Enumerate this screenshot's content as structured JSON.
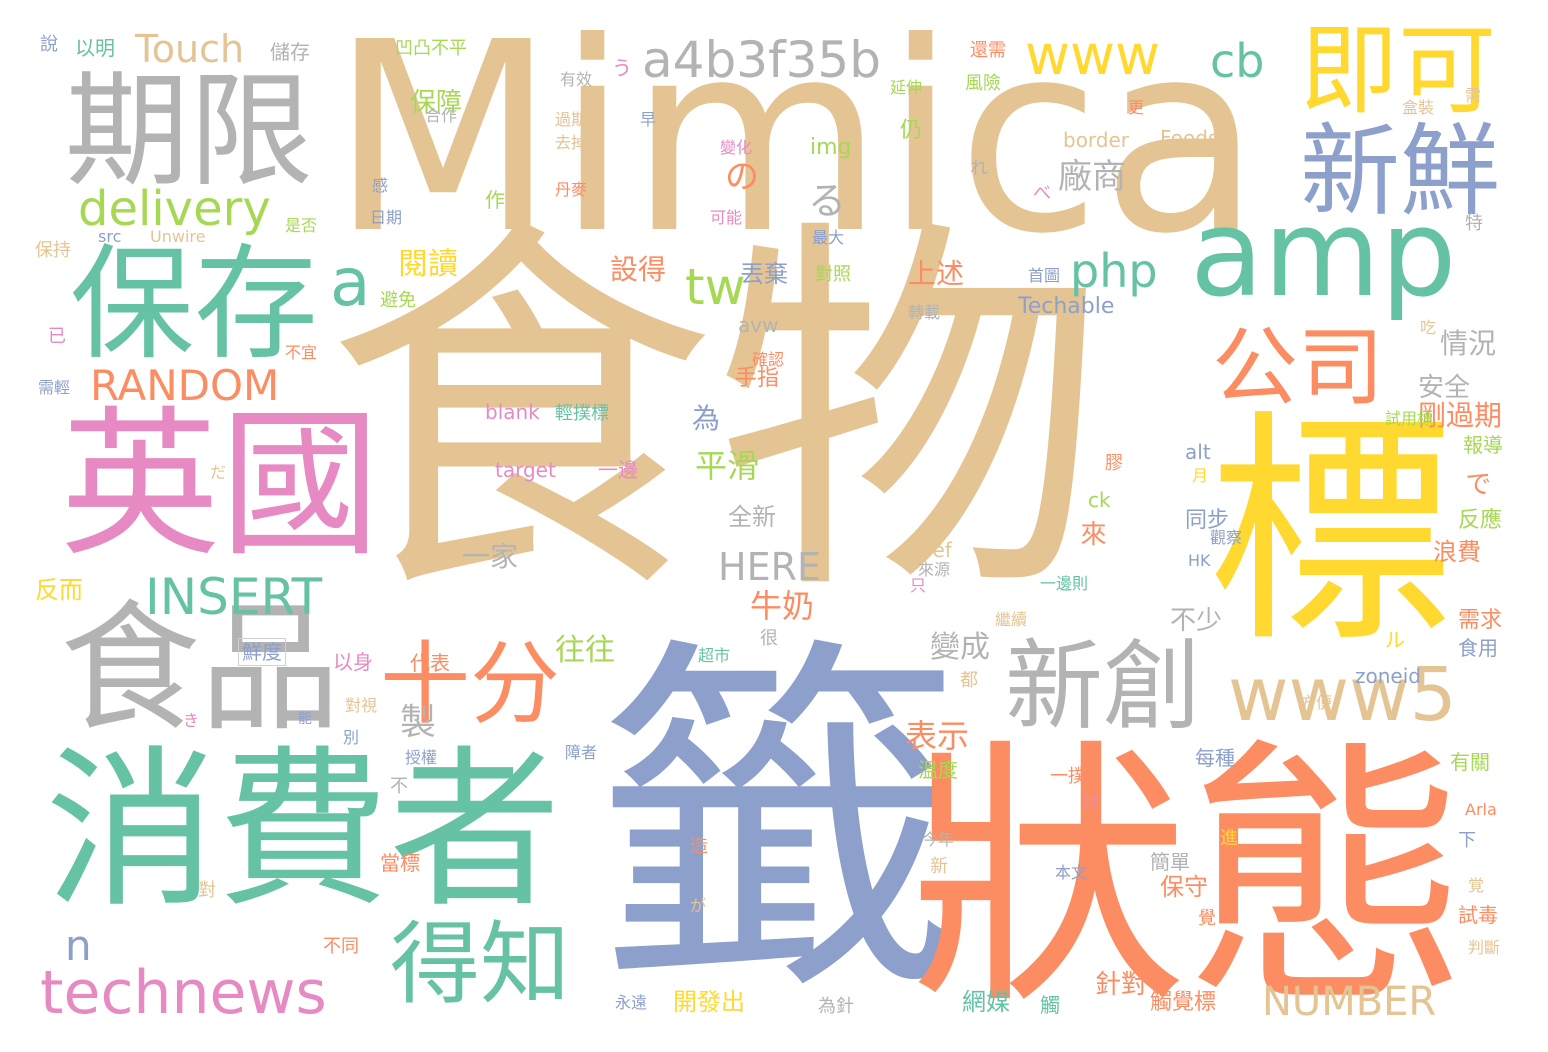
{
  "palette": {
    "tan": "#e5c494",
    "green": "#66c2a5",
    "orange": "#fc8d62",
    "blue": "#8da0cb",
    "pink": "#e78ac3",
    "lime": "#a6d854",
    "yellow": "#ffd92f",
    "gray": "#b3b3b3"
  },
  "words": [
    {
      "text": "食物",
      "color": "tan"
    },
    {
      "text": "Mimica",
      "color": "tan"
    },
    {
      "text": "籤",
      "color": "blue"
    },
    {
      "text": "狀態",
      "color": "orange"
    },
    {
      "text": "標",
      "color": "yellow"
    },
    {
      "text": "消費者",
      "color": "green"
    },
    {
      "text": "英國",
      "color": "pink"
    },
    {
      "text": "食品",
      "color": "gray"
    },
    {
      "text": "期限",
      "color": "gray"
    },
    {
      "text": "保存",
      "color": "green"
    },
    {
      "text": "amp",
      "color": "green"
    },
    {
      "text": "新鮮",
      "color": "blue"
    },
    {
      "text": "即可",
      "color": "yellow"
    },
    {
      "text": "新創",
      "color": "gray"
    },
    {
      "text": "www5",
      "color": "tan"
    },
    {
      "text": "十分",
      "color": "orange"
    },
    {
      "text": "得知",
      "color": "green"
    },
    {
      "text": "technews",
      "color": "pink"
    },
    {
      "text": "公司",
      "color": "orange"
    },
    {
      "text": "a4b3f35b",
      "color": "gray"
    },
    {
      "text": "www",
      "color": "yellow"
    },
    {
      "text": "delivery",
      "color": "lime"
    },
    {
      "text": "RANDOM",
      "color": "orange"
    },
    {
      "text": "INSERT",
      "color": "green"
    },
    {
      "text": "NUMBER",
      "color": "tan"
    },
    {
      "text": "Touch",
      "color": "tan"
    },
    {
      "text": "php",
      "color": "green"
    },
    {
      "text": "tw",
      "color": "lime"
    },
    {
      "text": "a",
      "color": "green"
    },
    {
      "text": "cb",
      "color": "green"
    },
    {
      "text": "n",
      "color": "blue"
    },
    {
      "text": "HERE",
      "color": "gray"
    },
    {
      "text": "製",
      "color": "gray"
    },
    {
      "text": "廠商",
      "color": "gray"
    },
    {
      "text": "る",
      "color": "gray"
    },
    {
      "text": "の",
      "color": "orange"
    },
    {
      "text": "閱讀",
      "color": "yellow"
    },
    {
      "text": "保障",
      "color": "lime"
    },
    {
      "text": "平滑",
      "color": "lime"
    },
    {
      "text": "牛奶",
      "color": "orange"
    },
    {
      "text": "表示",
      "color": "orange"
    },
    {
      "text": "變成",
      "color": "gray"
    },
    {
      "text": "往往",
      "color": "lime"
    },
    {
      "text": "上述",
      "color": "orange"
    },
    {
      "text": "設得",
      "color": "orange"
    },
    {
      "text": "丟棄",
      "color": "blue"
    },
    {
      "text": "一家",
      "color": "gray"
    },
    {
      "text": "全新",
      "color": "gray"
    },
    {
      "text": "來",
      "color": "orange"
    },
    {
      "text": "為",
      "color": "blue"
    },
    {
      "text": "手指",
      "color": "orange"
    },
    {
      "text": "安全",
      "color": "gray"
    },
    {
      "text": "情況",
      "color": "gray"
    },
    {
      "text": "剛過期",
      "color": "orange"
    },
    {
      "text": "不少",
      "color": "gray"
    },
    {
      "text": "で",
      "color": "orange"
    },
    {
      "text": "浪費",
      "color": "orange"
    },
    {
      "text": "反應",
      "color": "lime"
    },
    {
      "text": "報導",
      "color": "lime"
    },
    {
      "text": "需求",
      "color": "orange"
    },
    {
      "text": "食用",
      "color": "blue"
    },
    {
      "text": "同步",
      "color": "blue"
    },
    {
      "text": "保守",
      "color": "orange"
    },
    {
      "text": "針對",
      "color": "orange"
    },
    {
      "text": "網媒",
      "color": "green"
    },
    {
      "text": "觸覺標",
      "color": "orange"
    },
    {
      "text": "開發出",
      "color": "yellow"
    },
    {
      "text": "每種",
      "color": "blue"
    },
    {
      "text": "簡單",
      "color": "gray"
    },
    {
      "text": "代表",
      "color": "orange"
    },
    {
      "text": "以身",
      "color": "pink"
    },
    {
      "text": "溫度",
      "color": "lime"
    },
    {
      "text": "鮮度",
      "color": "blue"
    },
    {
      "text": "反而",
      "color": "yellow"
    },
    {
      "text": "Techable",
      "color": "blue"
    },
    {
      "text": "avw",
      "color": "gray"
    },
    {
      "text": "blank",
      "color": "pink"
    },
    {
      "text": "輕撲標",
      "color": "green"
    },
    {
      "text": "target",
      "color": "pink"
    },
    {
      "text": "一邊",
      "color": "pink"
    },
    {
      "text": "border",
      "color": "tan"
    },
    {
      "text": "Foods",
      "color": "tan"
    },
    {
      "text": "img",
      "color": "lime"
    },
    {
      "text": "zoneid",
      "color": "blue"
    },
    {
      "text": "alt",
      "color": "blue"
    },
    {
      "text": "ck",
      "color": "lime"
    },
    {
      "text": "href",
      "color": "tan"
    },
    {
      "text": "HK",
      "color": "blue"
    },
    {
      "text": "src",
      "color": "blue"
    },
    {
      "text": "Unwire",
      "color": "tan"
    },
    {
      "text": "Arla",
      "color": "orange"
    },
    {
      "text": "儲存",
      "color": "gray"
    },
    {
      "text": "以明",
      "color": "green"
    },
    {
      "text": "說",
      "color": "blue"
    },
    {
      "text": "凹凸不平",
      "color": "lime"
    },
    {
      "text": "還需",
      "color": "orange"
    },
    {
      "text": "風險",
      "color": "lime"
    },
    {
      "text": "延伸",
      "color": "lime"
    },
    {
      "text": "有效",
      "color": "gray"
    },
    {
      "text": "合作",
      "color": "gray"
    },
    {
      "text": "過期",
      "color": "tan"
    },
    {
      "text": "去掉",
      "color": "tan"
    },
    {
      "text": "丹麥",
      "color": "orange"
    },
    {
      "text": "變化",
      "color": "pink"
    },
    {
      "text": "可能",
      "color": "pink"
    },
    {
      "text": "最大",
      "color": "blue"
    },
    {
      "text": "對照",
      "color": "lime"
    },
    {
      "text": "轉載",
      "color": "gray"
    },
    {
      "text": "確認",
      "color": "orange"
    },
    {
      "text": "首圖",
      "color": "blue"
    },
    {
      "text": "日期",
      "color": "blue"
    },
    {
      "text": "是否",
      "color": "lime"
    },
    {
      "text": "保持",
      "color": "tan"
    },
    {
      "text": "避免",
      "color": "lime"
    },
    {
      "text": "不宜",
      "color": "orange"
    },
    {
      "text": "需輕",
      "color": "blue"
    },
    {
      "text": "超市",
      "color": "green"
    },
    {
      "text": "對視",
      "color": "tan"
    },
    {
      "text": "別",
      "color": "blue"
    },
    {
      "text": "授權",
      "color": "blue"
    },
    {
      "text": "障者",
      "color": "blue"
    },
    {
      "text": "一撲",
      "color": "orange"
    },
    {
      "text": "今年",
      "color": "gray"
    },
    {
      "text": "本文",
      "color": "blue"
    },
    {
      "text": "一邊則",
      "color": "green"
    },
    {
      "text": "來源",
      "color": "gray"
    },
    {
      "text": "觀察",
      "color": "blue"
    },
    {
      "text": "繼續",
      "color": "tan"
    },
    {
      "text": "方便",
      "color": "tan"
    },
    {
      "text": "有關",
      "color": "lime"
    },
    {
      "text": "試用標",
      "color": "lime"
    },
    {
      "text": "試毒",
      "color": "orange"
    },
    {
      "text": "判斷",
      "color": "tan"
    },
    {
      "text": "不同",
      "color": "orange"
    },
    {
      "text": "為針",
      "color": "gray"
    },
    {
      "text": "永遠",
      "color": "blue"
    },
    {
      "text": "當標",
      "color": "orange"
    },
    {
      "text": "仍",
      "color": "lime"
    },
    {
      "text": "吃",
      "color": "tan"
    },
    {
      "text": "觸",
      "color": "green"
    },
    {
      "text": "膠",
      "color": "orange"
    },
    {
      "text": "造",
      "color": "orange"
    },
    {
      "text": "進",
      "color": "yellow"
    },
    {
      "text": "覺",
      "color": "orange"
    },
    {
      "text": "很",
      "color": "gray"
    },
    {
      "text": "都",
      "color": "tan"
    },
    {
      "text": "新",
      "color": "tan"
    },
    {
      "text": "早",
      "color": "blue"
    },
    {
      "text": "作",
      "color": "lime"
    },
    {
      "text": "感",
      "color": "blue"
    },
    {
      "text": "更",
      "color": "orange"
    },
    {
      "text": "只",
      "color": "pink"
    },
    {
      "text": "月",
      "color": "yellow"
    },
    {
      "text": "下",
      "color": "blue"
    },
    {
      "text": "特",
      "color": "gray"
    },
    {
      "text": "需",
      "color": "tan"
    },
    {
      "text": "已",
      "color": "pink"
    },
    {
      "text": "不",
      "color": "gray"
    },
    {
      "text": "對",
      "color": "tan"
    },
    {
      "text": "能",
      "color": "blue"
    },
    {
      "text": "盒裝",
      "color": "tan"
    },
    {
      "text": "う",
      "color": "pink"
    },
    {
      "text": "れ",
      "color": "gray"
    },
    {
      "text": "べ",
      "color": "pink"
    },
    {
      "text": "だ",
      "color": "tan"
    },
    {
      "text": "け",
      "color": "pink"
    },
    {
      "text": "が",
      "color": "tan"
    },
    {
      "text": "ル",
      "color": "yellow"
    },
    {
      "text": "き",
      "color": "pink"
    },
    {
      "text": "覚",
      "color": "tan"
    }
  ]
}
